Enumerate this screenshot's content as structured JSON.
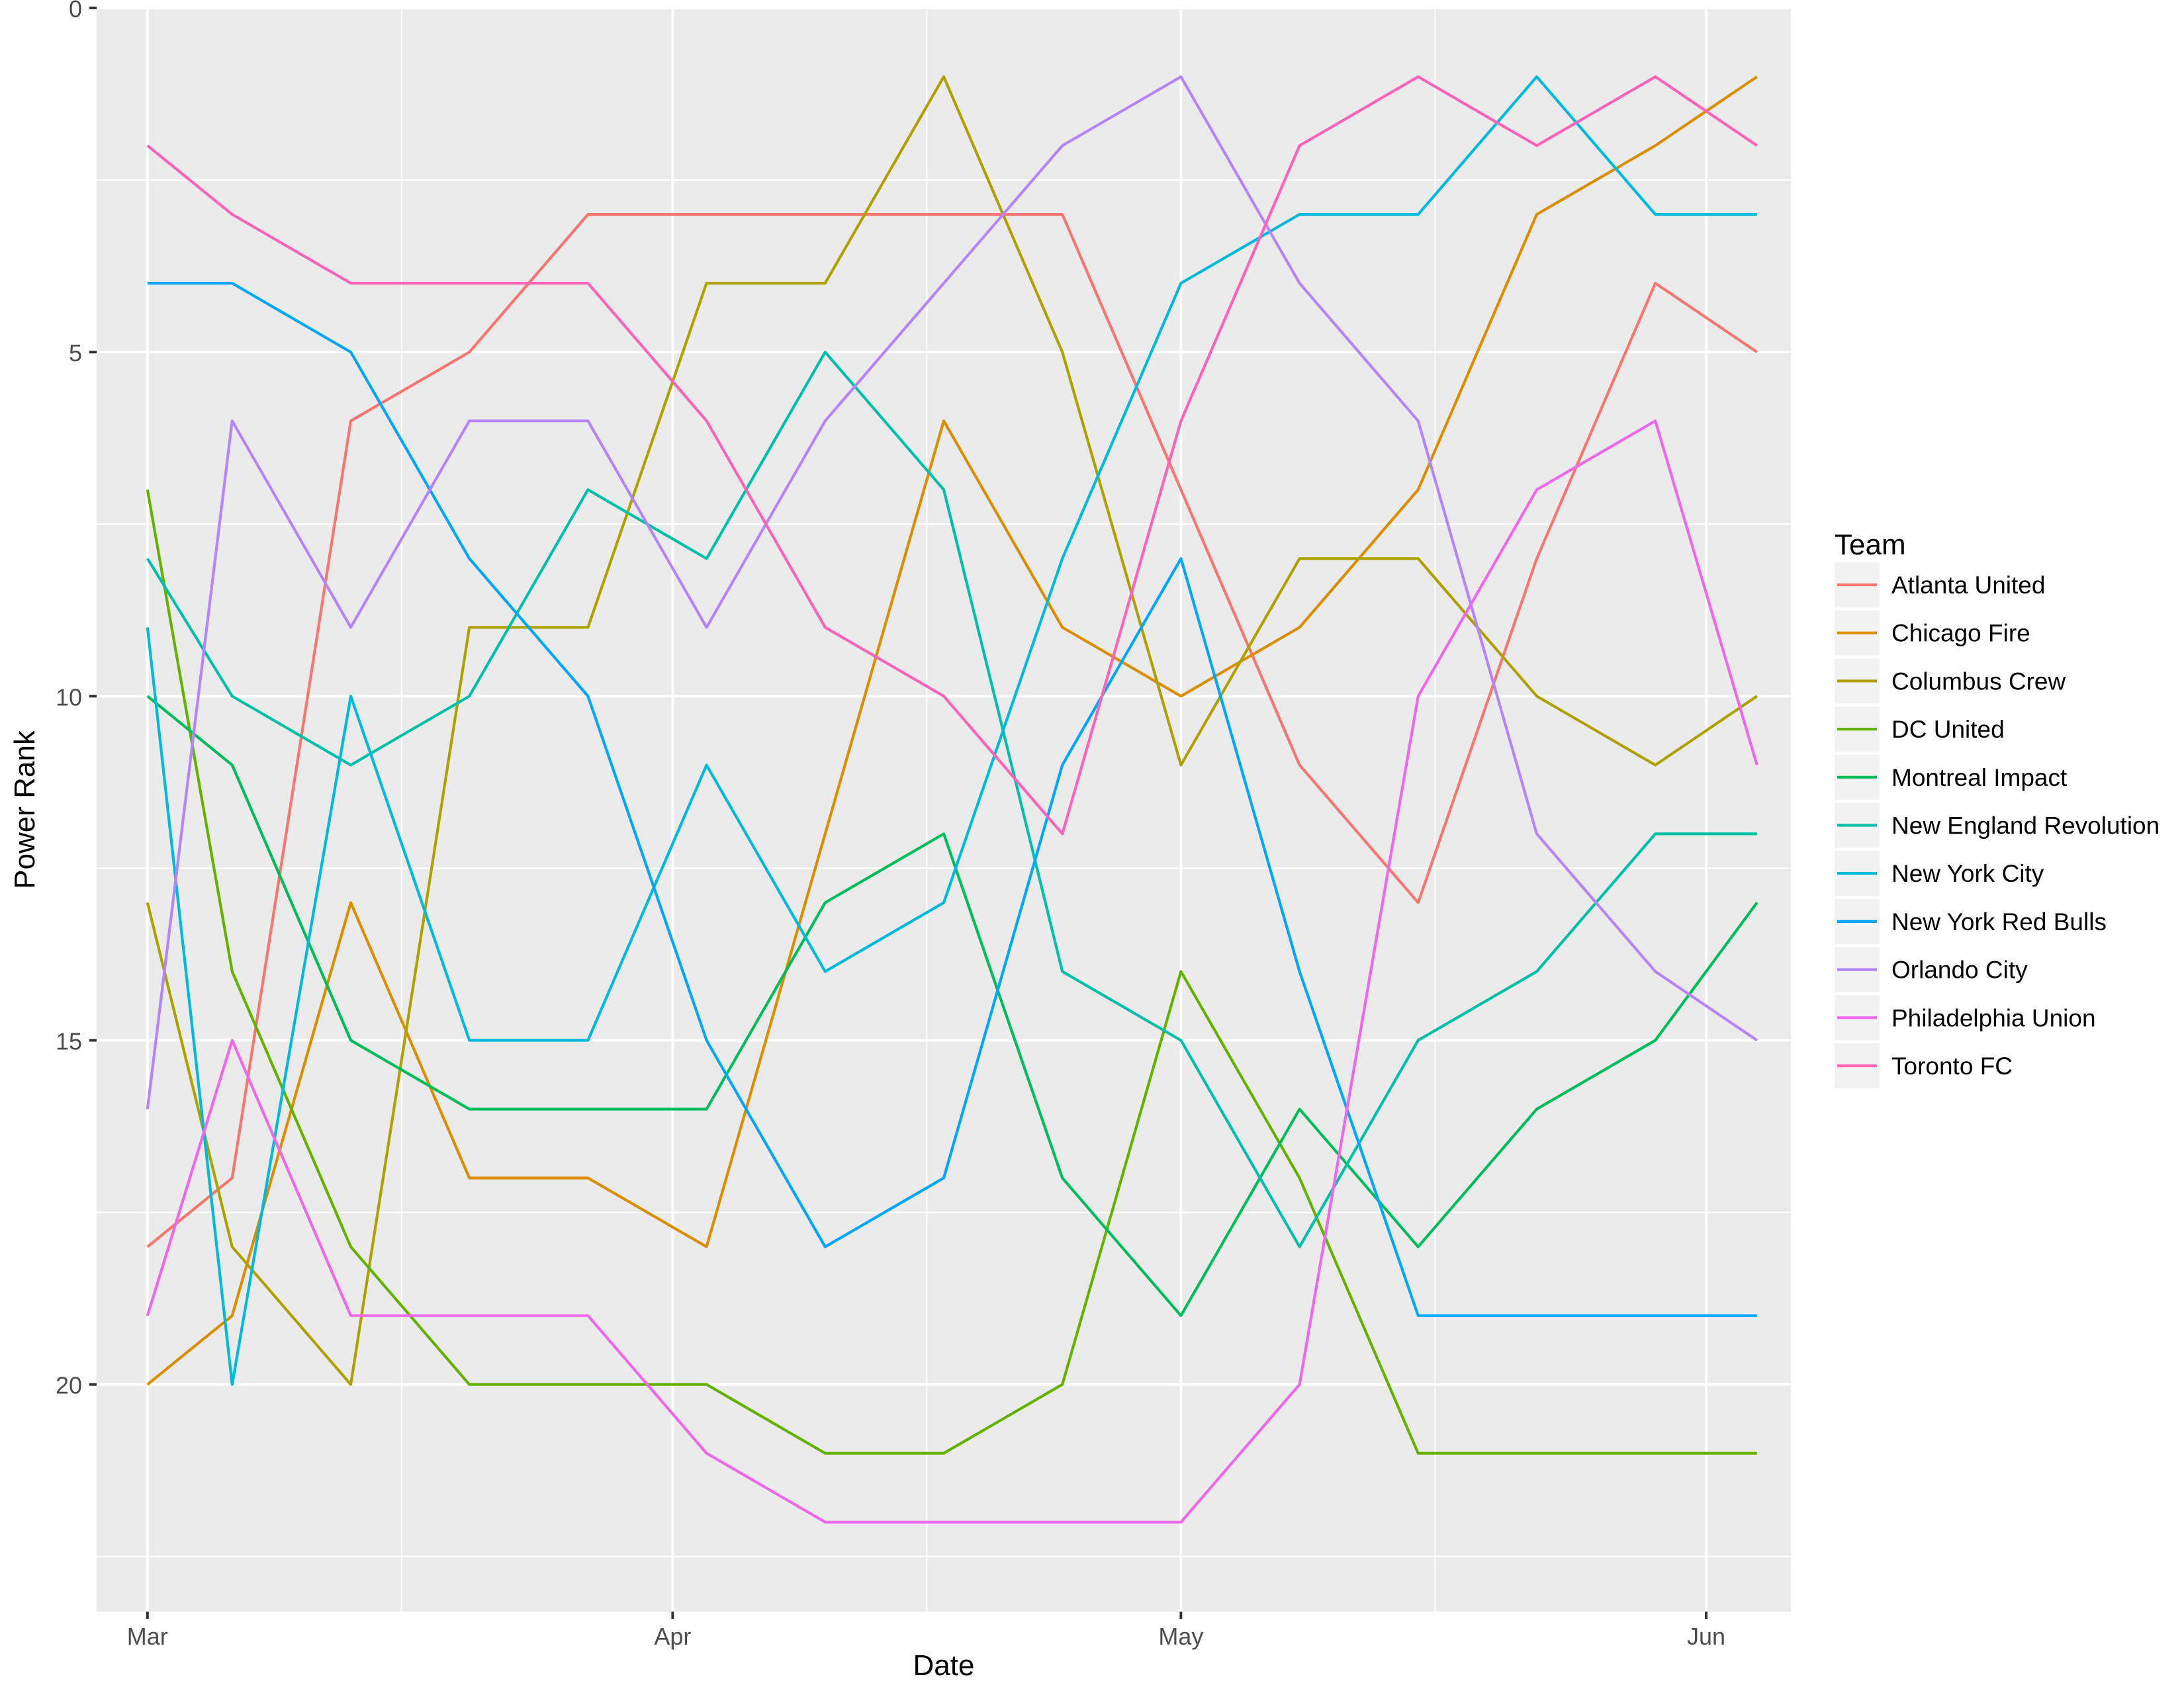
{
  "chart_data": {
    "type": "line",
    "title": "",
    "xlabel": "Date",
    "ylabel": "Power Rank",
    "x": [
      "2017-03-01",
      "2017-03-06",
      "2017-03-13",
      "2017-03-20",
      "2017-03-27",
      "2017-04-03",
      "2017-04-10",
      "2017-04-17",
      "2017-04-24",
      "2017-05-01",
      "2017-05-08",
      "2017-05-15",
      "2017-05-22",
      "2017-05-29",
      "2017-06-04"
    ],
    "xlim": [
      "2017-02-26",
      "2017-06-06"
    ],
    "ylim": [
      0,
      23.3
    ],
    "y_reversed": true,
    "x_ticks": [
      {
        "date": "2017-03-01",
        "label": "Mar"
      },
      {
        "date": "2017-04-01",
        "label": "Apr"
      },
      {
        "date": "2017-05-01",
        "label": "May"
      },
      {
        "date": "2017-06-01",
        "label": "Jun"
      }
    ],
    "x_minor_ticks": [
      "2017-03-16",
      "2017-04-16",
      "2017-05-16"
    ],
    "y_ticks": [
      0,
      5,
      10,
      15,
      20
    ],
    "y_minor_ticks": [
      2.5,
      7.5,
      12.5,
      17.5,
      22.5
    ],
    "grid": true,
    "legend": {
      "title": "Team",
      "position": "right"
    },
    "series": [
      {
        "name": "Atlanta United",
        "color": "#F8766D",
        "values": [
          18,
          17,
          6,
          5,
          3,
          3,
          3,
          3,
          3,
          7,
          11,
          13,
          8,
          4,
          5
        ]
      },
      {
        "name": "Chicago Fire",
        "color": "#DB8E00",
        "values": [
          20,
          19,
          13,
          17,
          17,
          18,
          12,
          6,
          9,
          10,
          9,
          7,
          3,
          2,
          1
        ]
      },
      {
        "name": "Columbus Crew",
        "color": "#AEA200",
        "values": [
          13,
          18,
          20,
          9,
          9,
          4,
          4,
          1,
          5,
          11,
          8,
          8,
          10,
          11,
          10
        ]
      },
      {
        "name": "DC United",
        "color": "#64B200",
        "values": [
          7,
          14,
          18,
          20,
          20,
          20,
          21,
          21,
          20,
          14,
          17,
          21,
          21,
          21,
          21
        ]
      },
      {
        "name": "Montreal Impact",
        "color": "#00BD5C",
        "values": [
          10,
          11,
          15,
          16,
          16,
          16,
          13,
          12,
          17,
          19,
          16,
          18,
          16,
          15,
          13
        ]
      },
      {
        "name": "New England Revolution",
        "color": "#00C1A7",
        "values": [
          8,
          10,
          11,
          10,
          7,
          8,
          5,
          7,
          14,
          15,
          18,
          15,
          14,
          12,
          12
        ]
      },
      {
        "name": "New York City",
        "color": "#00BADE",
        "values": [
          9,
          20,
          10,
          15,
          15,
          11,
          14,
          13,
          8,
          4,
          3,
          3,
          1,
          3,
          3
        ]
      },
      {
        "name": "New York Red Bulls",
        "color": "#00A6FF",
        "values": [
          4,
          4,
          5,
          8,
          10,
          15,
          18,
          17,
          11,
          8,
          14,
          19,
          19,
          19,
          19
        ]
      },
      {
        "name": "Orlando City",
        "color": "#B385FF",
        "values": [
          16,
          6,
          9,
          6,
          6,
          9,
          6,
          4,
          2,
          1,
          4,
          6,
          12,
          14,
          15
        ]
      },
      {
        "name": "Philadelphia Union",
        "color": "#EF67EB",
        "values": [
          19,
          15,
          19,
          19,
          19,
          21,
          22,
          22,
          22,
          22,
          20,
          10,
          7,
          6,
          11
        ]
      },
      {
        "name": "Toronto FC",
        "color": "#FF63B6",
        "values": [
          2,
          3,
          4,
          4,
          4,
          6,
          9,
          10,
          12,
          6,
          2,
          1,
          2,
          1,
          2
        ]
      }
    ]
  }
}
